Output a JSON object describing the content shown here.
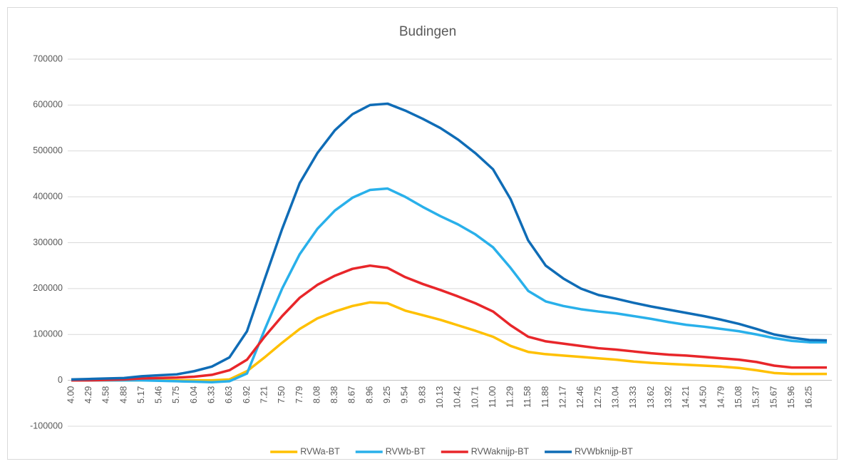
{
  "chart_data": {
    "type": "line",
    "title": "Budingen",
    "categories": [
      "4.00",
      "4.29",
      "4.58",
      "4.88",
      "5.17",
      "5.46",
      "5.75",
      "6.04",
      "6.33",
      "6.63",
      "6.92",
      "7.21",
      "7.50",
      "7.79",
      "8.08",
      "8.38",
      "8.67",
      "8.96",
      "9.25",
      "9.54",
      "9.83",
      "10.13",
      "10.42",
      "10.71",
      "11.00",
      "11.29",
      "11.58",
      "11.88",
      "12.17",
      "12.46",
      "12.75",
      "13.04",
      "13.33",
      "13.62",
      "13.92",
      "14.21",
      "14.50",
      "14.79",
      "15.08",
      "15.37",
      "15.67",
      "15.96",
      "16.25",
      null
    ],
    "series": [
      {
        "name": "RVWa-BT",
        "color": "#ffc000",
        "values": [
          0,
          0,
          0,
          0,
          0,
          0,
          0,
          0,
          0,
          2000,
          20000,
          50000,
          82000,
          112000,
          135000,
          150000,
          162000,
          170000,
          168000,
          152000,
          142000,
          132000,
          120000,
          108000,
          95000,
          75000,
          62000,
          57000,
          54000,
          51000,
          48000,
          45000,
          41000,
          38000,
          36000,
          34000,
          32000,
          30000,
          27000,
          22000,
          16000,
          14000,
          14000,
          14000
        ]
      },
      {
        "name": "RVWb-BT",
        "color": "#29b0ea",
        "values": [
          0,
          0,
          0,
          0,
          0,
          -1000,
          -2000,
          -3000,
          -4000,
          -2000,
          15000,
          110000,
          200000,
          275000,
          330000,
          370000,
          398000,
          415000,
          418000,
          400000,
          378000,
          358000,
          340000,
          318000,
          290000,
          245000,
          195000,
          172000,
          162000,
          155000,
          150000,
          146000,
          140000,
          134000,
          127000,
          121000,
          117000,
          112000,
          107000,
          100000,
          92000,
          86000,
          83000,
          83000
        ]
      },
      {
        "name": "RVWaknijp-BT",
        "color": "#e8262a",
        "values": [
          0,
          0,
          1000,
          2000,
          4000,
          5000,
          6000,
          8000,
          12000,
          22000,
          45000,
          95000,
          140000,
          180000,
          208000,
          228000,
          243000,
          250000,
          245000,
          225000,
          210000,
          197000,
          183000,
          168000,
          150000,
          120000,
          95000,
          85000,
          80000,
          75000,
          70000,
          67000,
          63000,
          59000,
          56000,
          54000,
          51000,
          48000,
          45000,
          40000,
          32000,
          28000,
          28000,
          28000
        ]
      },
      {
        "name": "RVWbknijp-BT",
        "color": "#0f6cb6",
        "values": [
          2000,
          3000,
          4000,
          5000,
          9000,
          11000,
          13000,
          20000,
          30000,
          50000,
          107000,
          220000,
          330000,
          430000,
          495000,
          545000,
          580000,
          600000,
          603000,
          588000,
          570000,
          550000,
          525000,
          495000,
          460000,
          395000,
          305000,
          250000,
          222000,
          200000,
          186000,
          178000,
          169000,
          161000,
          154000,
          147000,
          140000,
          132000,
          123000,
          112000,
          100000,
          93000,
          88000,
          87000
        ]
      }
    ],
    "ylim": [
      -100000,
      700000
    ],
    "yticks": [
      -100000,
      0,
      100000,
      200000,
      300000,
      400000,
      500000,
      600000,
      700000
    ],
    "grid": true,
    "legend": "bottom"
  }
}
